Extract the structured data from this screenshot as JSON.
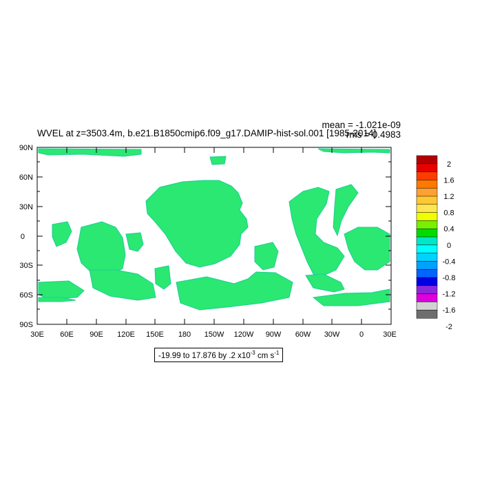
{
  "figure": {
    "title": "WVEL at z=3503.4m, b.e21.B1850cmip6.f09_g17.DAMIP-hist-sol.001 [1985-2014]",
    "mean_label": "mean = -1.021e-09",
    "rms_label": "rms = 0.4983",
    "range_prefix": "-19.99 to 17.876 by .2 x10",
    "range_exponent": "-3",
    "range_units": " cm s",
    "range_units_exponent": "-1"
  },
  "map": {
    "lat_ticks": [
      "90N",
      "60N",
      "30N",
      "0",
      "30S",
      "60S",
      "90S"
    ],
    "lon_ticks": [
      "30E",
      "60E",
      "90E",
      "120E",
      "150E",
      "180",
      "150W",
      "120W",
      "90W",
      "60W",
      "30W",
      "0",
      "30E"
    ],
    "ocean_color": "#2ae872",
    "land_color": "#ffffff"
  },
  "colorbar": {
    "labels": [
      "2",
      "1.6",
      "1.2",
      "0.8",
      "0.4",
      "0",
      "-0.4",
      "-0.8",
      "-1.2",
      "-1.6",
      "-2"
    ],
    "colors": [
      "#b40000",
      "#e60000",
      "#ff3c00",
      "#ff7800",
      "#ffa032",
      "#ffc832",
      "#ffe650",
      "#f0ff00",
      "#78f000",
      "#00dc00",
      "#00e6c8",
      "#00ffff",
      "#00d2ff",
      "#00a0ff",
      "#0064ff",
      "#0000e6",
      "#8c28dc",
      "#dc00dc",
      "#d2d2d2",
      "#6e6e6e"
    ]
  }
}
